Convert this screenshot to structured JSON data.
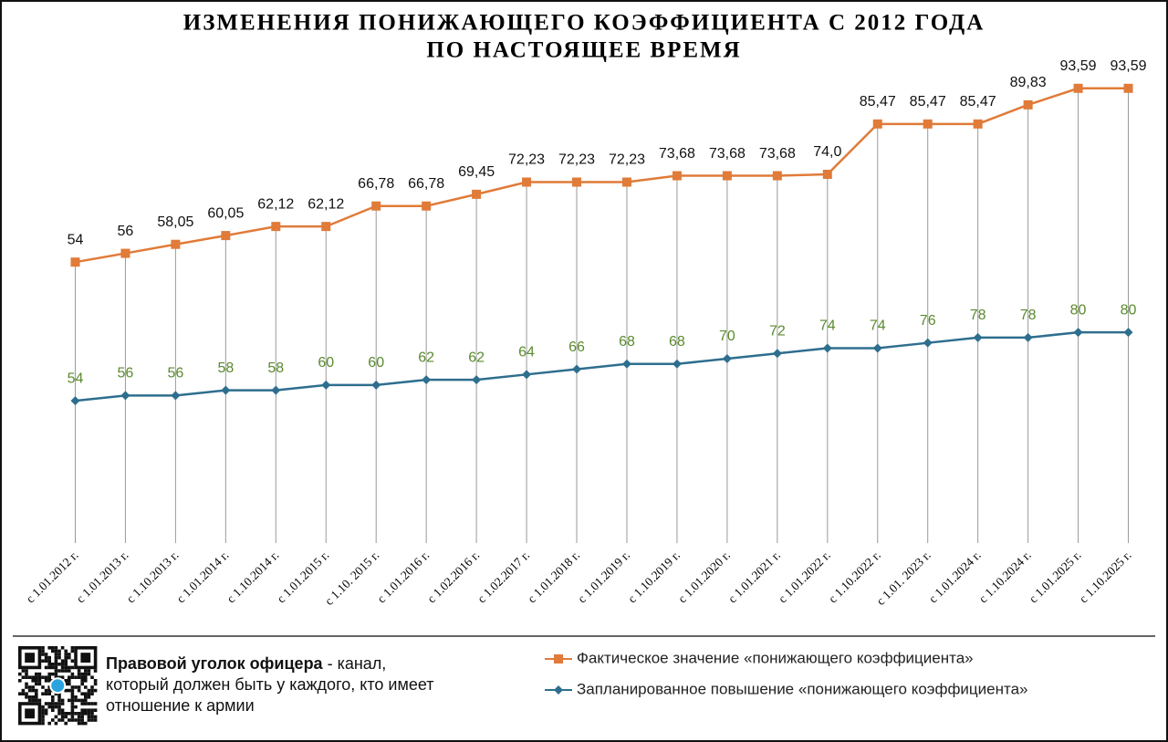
{
  "chart_data": {
    "type": "line",
    "title": [
      "ИЗМЕНЕНИЯ ПОНИЖАЮЩЕГО КОЭФФИЦИЕНТА С 2012 ГОДА",
      "ПО НАСТОЯЩЕЕ ВРЕМЯ"
    ],
    "categories": [
      "с 1.01.2012 г.",
      "с 1.01.2013 г.",
      "с 1.10.2013 г.",
      "с 1.01.2014 г.",
      "с 1.10.2014 г.",
      "с 1.01.2015 г.",
      "с 1.10. 2015 г.",
      "с 1.01.2016 г.",
      "с 1.02.2016 г.",
      "с 1.02.2017 г.",
      "с 1.01.2018 г.",
      "с 1.01.2019 г.",
      "с 1.10.2019 г.",
      "с 1.01.2020 г.",
      "с 1.01.2021 г.",
      "с 1.01.2022 г.",
      "с 1.10.2022 г.",
      "с 1.01. 2023 г.",
      "с 1.01.2024 г.",
      "с 1.10.2024 г.",
      "с 1.01.2025 г.",
      "с 1.10.2025 г."
    ],
    "series": [
      {
        "name": "Фактическое значение «понижающего коэффициента»",
        "color": "#e07b39",
        "axis": "y2",
        "values": [
          54,
          56,
          58.05,
          60.05,
          62.12,
          62.12,
          66.78,
          66.78,
          69.45,
          72.23,
          72.23,
          72.23,
          73.68,
          73.68,
          73.68,
          74.0,
          85.47,
          85.47,
          85.47,
          89.83,
          93.59,
          93.59
        ],
        "value_labels": [
          "54",
          "56",
          "58,05",
          "60,05",
          "62,12",
          "62,12",
          "66,78",
          "66,78",
          "69,45",
          "72,23",
          "72,23",
          "72,23",
          "73,68",
          "73,68",
          "73,68",
          "74,0",
          "85,47",
          "85,47",
          "85,47",
          "89,83",
          "93,59",
          "93,59"
        ]
      },
      {
        "name": "Запланированное повышение «понижающего коэффициента»",
        "color": "#2e6e8e",
        "label_color": "#5a8a2e",
        "values": [
          54,
          56,
          56,
          58,
          58,
          60,
          60,
          62,
          62,
          64,
          66,
          68,
          68,
          70,
          72,
          74,
          74,
          76,
          78,
          78,
          80,
          80
        ]
      }
    ],
    "ylim": [
      0,
      175
    ],
    "y2lim": [
      -10,
      95
    ]
  },
  "footer": {
    "channel": "Правовой уголок офицера",
    "text": " - канал, который должен быть у каждого, кто имеет отношение к армии"
  }
}
